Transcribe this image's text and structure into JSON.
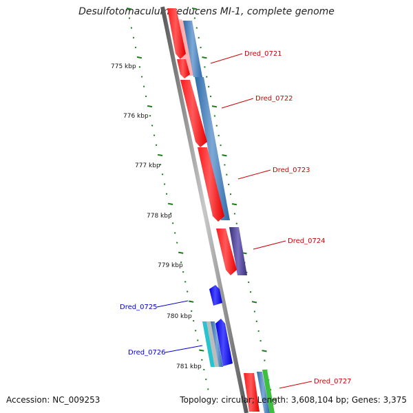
{
  "title": "Desulfotomaculum reducens MI-1, complete genome",
  "accession_text": "Accession: NC_009253",
  "summary_text": "Topology: circular; Length: 3,608,104 bp; Genes: 3,375",
  "ruler": {
    "labels": [
      "775 kbp",
      "776 kbp",
      "777 kbp",
      "778 kbp",
      "779 kbp",
      "780 kbp",
      "781 kbp"
    ]
  },
  "genes": [
    {
      "label": "Dred_0721",
      "strand": "forward",
      "color": "#cc0000"
    },
    {
      "label": "Dred_0722",
      "strand": "forward",
      "color": "#cc0000"
    },
    {
      "label": "Dred_0723",
      "strand": "forward",
      "color": "#cc0000"
    },
    {
      "label": "Dred_0724",
      "strand": "forward",
      "color": "#cc0000"
    },
    {
      "label": "Dred_0725",
      "strand": "reverse",
      "color": "#0000cc"
    },
    {
      "label": "Dred_0726",
      "strand": "reverse",
      "color": "#0000cc"
    },
    {
      "label": "Dred_0727",
      "strand": "forward",
      "color": "#cc0000"
    }
  ],
  "colors": {
    "backbone": "#8a8a8a",
    "cds_forward": "#ff0000",
    "cds_reverse": "#0000ff",
    "feature_blue": "#4a86c0",
    "feature_purple": "#4b3f8f",
    "feature_cyan": "#27c4cf",
    "feature_green": "#3fbf3f",
    "ticks": "#1a7a1a"
  }
}
